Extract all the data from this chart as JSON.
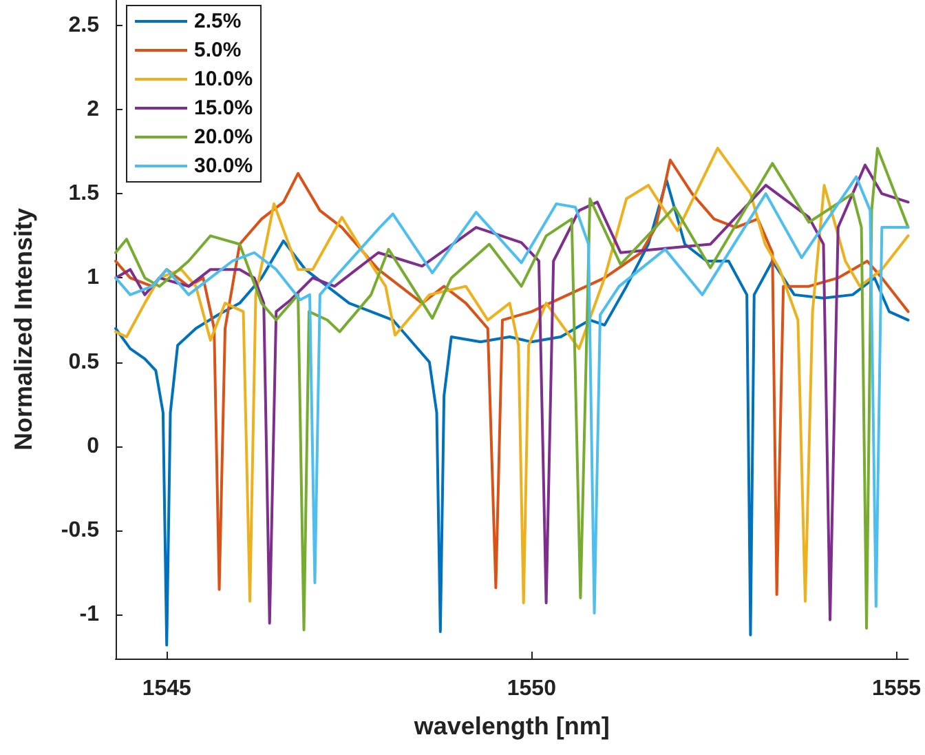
{
  "chart_data": {
    "type": "line",
    "xlabel": "wavelength [nm]",
    "ylabel": "Normalized Intensity",
    "xlim": [
      1544.3,
      1555.16
    ],
    "ylim": [
      -1.26,
      2.65
    ],
    "xticks": [
      1545,
      1550,
      1555
    ],
    "yticks": [
      -1,
      -0.5,
      0,
      0.5,
      1,
      1.5,
      2,
      2.5
    ],
    "grid": false,
    "legend": "top left",
    "marker": "none",
    "line_style": "solid",
    "series": [
      {
        "name": "2.5%",
        "color": "#0072bd",
        "x": [
          1544.3,
          1544.5,
          1544.7,
          1544.85,
          1544.95,
          1545.0,
          1545.05,
          1545.15,
          1545.4,
          1545.7,
          1546.0,
          1546.3,
          1546.6,
          1546.9,
          1547.2,
          1547.5,
          1547.8,
          1548.1,
          1548.4,
          1548.6,
          1548.7,
          1548.75,
          1548.8,
          1548.9,
          1549.3,
          1549.7,
          1550.0,
          1550.4,
          1550.8,
          1551.0,
          1551.3,
          1551.6,
          1551.85,
          1552.1,
          1552.4,
          1552.7,
          1552.95,
          1553.0,
          1553.05,
          1553.3,
          1553.6,
          1554.0,
          1554.4,
          1554.7,
          1554.9,
          1555.16
        ],
        "values": [
          0.7,
          0.58,
          0.52,
          0.45,
          0.2,
          -1.18,
          0.2,
          0.6,
          0.7,
          0.78,
          0.85,
          1.0,
          1.22,
          1.05,
          0.95,
          0.85,
          0.8,
          0.75,
          0.6,
          0.5,
          0.2,
          -1.1,
          0.3,
          0.65,
          0.62,
          0.65,
          0.62,
          0.65,
          0.75,
          0.72,
          0.95,
          1.2,
          1.58,
          1.2,
          1.1,
          1.1,
          0.9,
          -1.12,
          0.9,
          1.1,
          0.9,
          0.88,
          0.9,
          1.0,
          0.8,
          0.75
        ]
      },
      {
        "name": "5.0%",
        "color": "#d95319",
        "x": [
          1544.3,
          1544.5,
          1544.8,
          1545.0,
          1545.3,
          1545.5,
          1545.65,
          1545.72,
          1545.8,
          1546.0,
          1546.3,
          1546.6,
          1546.8,
          1547.1,
          1547.4,
          1547.6,
          1547.9,
          1548.2,
          1548.5,
          1548.8,
          1549.1,
          1549.4,
          1549.51,
          1549.6,
          1550.0,
          1550.5,
          1551.0,
          1551.5,
          1551.7,
          1551.9,
          1552.2,
          1552.5,
          1552.8,
          1553.1,
          1553.3,
          1553.36,
          1553.45,
          1553.8,
          1554.2,
          1554.6,
          1554.8,
          1555.16
        ],
        "values": [
          1.1,
          1.0,
          0.95,
          1.05,
          0.95,
          1.0,
          0.7,
          -0.85,
          0.7,
          1.2,
          1.35,
          1.45,
          1.62,
          1.4,
          1.3,
          1.2,
          1.05,
          0.95,
          0.85,
          0.95,
          0.85,
          0.7,
          -0.84,
          0.75,
          0.8,
          0.9,
          1.0,
          1.15,
          1.3,
          1.7,
          1.5,
          1.35,
          1.3,
          1.35,
          1.15,
          -0.88,
          0.95,
          0.95,
          1.0,
          1.1,
          1.0,
          0.8
        ]
      },
      {
        "name": "10.0%",
        "color": "#edb120",
        "x": [
          1544.3,
          1544.45,
          1544.7,
          1544.9,
          1545.2,
          1545.4,
          1545.6,
          1545.8,
          1546.05,
          1546.14,
          1546.22,
          1546.47,
          1546.8,
          1547.0,
          1547.4,
          1547.7,
          1548.0,
          1548.13,
          1548.6,
          1549.1,
          1549.4,
          1549.7,
          1549.82,
          1549.89,
          1549.96,
          1550.2,
          1550.65,
          1551.0,
          1551.3,
          1551.6,
          1552.0,
          1552.55,
          1553.0,
          1553.2,
          1553.4,
          1553.65,
          1553.75,
          1553.85,
          1554.01,
          1554.3,
          1554.5,
          1554.8,
          1555.16
        ],
        "values": [
          0.68,
          0.65,
          0.85,
          1.0,
          1.05,
          0.95,
          0.63,
          0.85,
          0.8,
          -0.92,
          0.9,
          1.44,
          1.05,
          1.05,
          1.36,
          1.15,
          0.95,
          0.66,
          0.9,
          0.95,
          0.75,
          0.85,
          0.6,
          -0.93,
          0.6,
          0.85,
          0.58,
          1.0,
          1.47,
          1.55,
          1.28,
          1.77,
          1.5,
          1.2,
          1.05,
          0.75,
          -0.92,
          0.8,
          1.55,
          1.1,
          0.95,
          1.05,
          1.25
        ]
      },
      {
        "name": "15.0%",
        "color": "#7e2f8e",
        "x": [
          1544.3,
          1544.5,
          1544.7,
          1544.9,
          1545.3,
          1545.6,
          1546.0,
          1546.2,
          1546.33,
          1546.41,
          1546.5,
          1546.7,
          1547.0,
          1547.3,
          1547.6,
          1547.9,
          1548.2,
          1548.5,
          1549.24,
          1549.86,
          1550.1,
          1550.2,
          1550.3,
          1550.65,
          1550.9,
          1551.22,
          1552.45,
          1553.21,
          1553.8,
          1554.0,
          1554.09,
          1554.2,
          1554.57,
          1554.8,
          1555.16
        ],
        "values": [
          1.0,
          1.05,
          0.9,
          1.0,
          0.95,
          1.05,
          1.05,
          1.0,
          0.85,
          -1.05,
          0.8,
          0.87,
          1.0,
          0.95,
          1.05,
          1.15,
          1.11,
          1.07,
          1.3,
          1.21,
          1.1,
          -0.93,
          1.1,
          1.4,
          1.45,
          1.15,
          1.2,
          1.55,
          1.36,
          1.2,
          -1.03,
          1.3,
          1.67,
          1.5,
          1.45
        ]
      },
      {
        "name": "20.0%",
        "color": "#77ac30",
        "x": [
          1544.3,
          1544.45,
          1544.7,
          1544.9,
          1545.3,
          1545.6,
          1546.0,
          1546.3,
          1546.5,
          1546.8,
          1546.88,
          1546.95,
          1547.2,
          1547.37,
          1547.8,
          1548.04,
          1548.64,
          1548.9,
          1549.42,
          1549.86,
          1550.2,
          1550.55,
          1550.67,
          1550.8,
          1551.22,
          1551.96,
          1552.45,
          1553.3,
          1553.8,
          1554.4,
          1554.52,
          1554.59,
          1554.66,
          1554.74,
          1555.16
        ],
        "values": [
          1.15,
          1.23,
          1.0,
          0.95,
          1.1,
          1.25,
          1.2,
          0.85,
          0.75,
          0.9,
          -1.09,
          0.8,
          0.75,
          0.68,
          0.9,
          1.17,
          0.76,
          1.0,
          1.2,
          0.95,
          1.25,
          1.35,
          -0.9,
          1.47,
          1.08,
          1.42,
          1.06,
          1.68,
          1.33,
          1.5,
          1.3,
          -1.08,
          1.4,
          1.77,
          1.3
        ]
      },
      {
        "name": "30.0%",
        "color": "#4dbeee",
        "x": [
          1544.3,
          1544.5,
          1544.8,
          1545.0,
          1545.3,
          1545.6,
          1545.9,
          1546.2,
          1546.5,
          1546.83,
          1546.96,
          1547.03,
          1547.1,
          1547.3,
          1547.92,
          1548.1,
          1548.64,
          1549.24,
          1549.86,
          1550.34,
          1550.6,
          1550.78,
          1550.86,
          1550.94,
          1551.2,
          1551.83,
          1552.34,
          1553.21,
          1553.7,
          1554.45,
          1554.64,
          1554.72,
          1554.8,
          1555.16
        ],
        "values": [
          1.0,
          0.9,
          0.95,
          1.05,
          0.9,
          1.0,
          1.1,
          1.15,
          1.05,
          0.87,
          0.9,
          -0.81,
          0.9,
          1.0,
          1.3,
          1.38,
          1.03,
          1.39,
          1.09,
          1.44,
          1.42,
          1.2,
          -0.99,
          0.78,
          0.95,
          1.17,
          0.9,
          1.5,
          1.12,
          1.6,
          1.4,
          -0.95,
          1.3,
          1.3
        ]
      }
    ]
  }
}
